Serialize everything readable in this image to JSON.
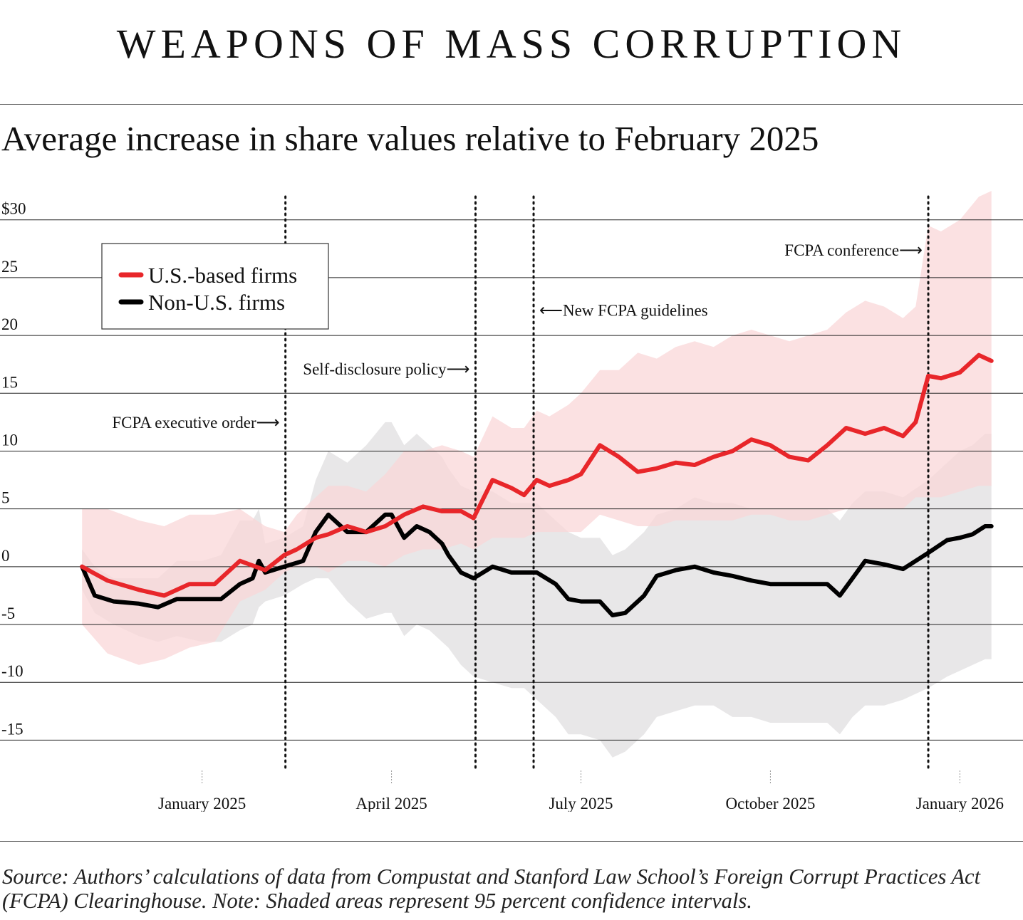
{
  "header": {
    "title": "WEAPONS OF MASS CORRUPTION",
    "subtitle": "Average increase in share values relative to February 2025"
  },
  "footer": {
    "source": "Source: Authors’ calculations of data from Compustat and Stanford Law School’s Foreign Corrupt Practices Act (FCPA) Clearinghouse. Note: Shaded areas represent 95 percent confidence intervals."
  },
  "colors": {
    "us_line": "#e8262a",
    "us_band": "#f9d7d8",
    "nonus_line": "#000000",
    "nonus_band": "#d9d7d9",
    "grid": "#222222"
  },
  "chart_data": {
    "type": "line",
    "title": "Average increase in share values relative to February 2025",
    "xlabel": "",
    "ylabel": "",
    "x_unit": "months since Jan 1, 2025",
    "xlim": [
      -3.2,
      13.0
    ],
    "ylim": [
      -17.5,
      33
    ],
    "y_ticks": [
      {
        "value": 30,
        "label": "$30"
      },
      {
        "value": 25,
        "label": "25"
      },
      {
        "value": 20,
        "label": "20"
      },
      {
        "value": 15,
        "label": "15"
      },
      {
        "value": 10,
        "label": "10"
      },
      {
        "value": 5,
        "label": "5"
      },
      {
        "value": 0,
        "label": "0"
      },
      {
        "value": -5,
        "label": "-5"
      },
      {
        "value": -10,
        "label": "-10"
      },
      {
        "value": -15,
        "label": "-15"
      }
    ],
    "x_ticks": [
      {
        "value": 0,
        "label": "January 2025"
      },
      {
        "value": 3,
        "label": "April 2025"
      },
      {
        "value": 6,
        "label": "July 2025"
      },
      {
        "value": 9,
        "label": "October 2025"
      },
      {
        "value": 12,
        "label": "January 2026"
      }
    ],
    "legend": {
      "position": "top-left",
      "entries": [
        {
          "name": "U.S.-based firms",
          "color": "#e8262a"
        },
        {
          "name": "Non-U.S. firms",
          "color": "#000000"
        }
      ]
    },
    "events": [
      {
        "x": 1.32,
        "label": "FCPA executive order⟶",
        "label_side": "left",
        "label_y": 12.5
      },
      {
        "x": 4.33,
        "label": "Self-disclosure policy⟶",
        "label_side": "left",
        "label_y": 17.1
      },
      {
        "x": 5.25,
        "label": "⟵New FCPA guidelines",
        "label_side": "right",
        "label_y": 22.2
      },
      {
        "x": 11.5,
        "label": "FCPA conference⟶",
        "label_side": "left",
        "label_y": 27.4
      }
    ],
    "series": [
      {
        "name": "U.S.-based firms",
        "color": "#e8262a",
        "x": [
          -1.9,
          -1.5,
          -1.0,
          -0.6,
          -0.2,
          0.2,
          0.6,
          1.0,
          1.3,
          1.5,
          1.8,
          2.0,
          2.3,
          2.6,
          2.9,
          3.2,
          3.5,
          3.8,
          4.1,
          4.3,
          4.6,
          4.9,
          5.1,
          5.3,
          5.5,
          5.8,
          6.0,
          6.3,
          6.6,
          6.9,
          7.2,
          7.5,
          7.8,
          8.1,
          8.4,
          8.7,
          9.0,
          9.3,
          9.6,
          9.9,
          10.2,
          10.5,
          10.8,
          11.1,
          11.3,
          11.5,
          11.7,
          12.0,
          12.3,
          12.5
        ],
        "values": [
          0.0,
          -1.2,
          -2.0,
          -2.5,
          -1.5,
          -1.5,
          0.5,
          -0.3,
          1.0,
          1.5,
          2.5,
          2.8,
          3.5,
          3.0,
          3.5,
          4.5,
          5.2,
          4.8,
          4.8,
          4.2,
          7.5,
          6.8,
          6.2,
          7.5,
          7.0,
          7.5,
          8.0,
          10.5,
          9.5,
          8.2,
          8.5,
          9.0,
          8.8,
          9.5,
          10.0,
          11.0,
          10.5,
          9.5,
          9.2,
          10.5,
          12.0,
          11.5,
          12.0,
          11.3,
          12.5,
          16.5,
          16.3,
          16.8,
          18.3,
          17.8
        ],
        "lower": [
          -5.0,
          -7.5,
          -8.5,
          -8.0,
          -7.0,
          -6.5,
          -3.0,
          -2.0,
          -0.5,
          0.0,
          0.0,
          -0.5,
          0.5,
          0.5,
          0.0,
          1.0,
          1.5,
          1.5,
          2.0,
          1.5,
          2.5,
          2.5,
          2.5,
          3.0,
          3.0,
          3.0,
          3.0,
          4.5,
          4.0,
          3.5,
          3.5,
          4.0,
          4.0,
          4.0,
          4.0,
          4.5,
          4.5,
          4.0,
          4.0,
          4.5,
          5.0,
          5.0,
          5.0,
          5.0,
          6.0,
          6.0,
          6.0,
          6.5,
          7.0,
          7.0
        ],
        "upper": [
          5.0,
          5.0,
          4.0,
          3.5,
          4.5,
          4.5,
          5.0,
          3.5,
          3.0,
          4.5,
          6.0,
          7.0,
          7.0,
          6.5,
          8.0,
          10.0,
          10.0,
          10.5,
          10.0,
          9.5,
          13.0,
          12.0,
          12.0,
          13.5,
          13.0,
          14.0,
          15.0,
          17.0,
          17.0,
          18.5,
          18.0,
          19.0,
          19.5,
          19.0,
          20.0,
          20.5,
          20.0,
          19.5,
          20.0,
          20.5,
          22.0,
          23.0,
          22.5,
          21.5,
          22.5,
          29.5,
          29.0,
          30.0,
          32.0,
          32.5
        ]
      },
      {
        "name": "Non-U.S. firms",
        "color": "#000000",
        "x": [
          -1.9,
          -1.7,
          -1.4,
          -1.0,
          -0.7,
          -0.4,
          0.0,
          0.3,
          0.6,
          0.8,
          0.9,
          1.0,
          1.3,
          1.6,
          1.8,
          2.0,
          2.3,
          2.6,
          2.9,
          3.0,
          3.2,
          3.4,
          3.6,
          3.8,
          3.9,
          4.1,
          4.3,
          4.6,
          4.9,
          5.1,
          5.3,
          5.6,
          5.8,
          6.0,
          6.3,
          6.5,
          6.7,
          6.9,
          7.0,
          7.2,
          7.5,
          7.8,
          8.1,
          8.4,
          8.7,
          9.0,
          9.3,
          9.6,
          9.9,
          10.1,
          10.3,
          10.5,
          10.8,
          11.1,
          11.5,
          11.8,
          12.0,
          12.2,
          12.4,
          12.5
        ],
        "values": [
          0.0,
          -2.5,
          -3.0,
          -3.2,
          -3.5,
          -2.8,
          -2.8,
          -2.8,
          -1.5,
          -1.0,
          0.5,
          -0.5,
          0.0,
          0.5,
          3.0,
          4.5,
          3.0,
          3.0,
          4.5,
          4.5,
          2.5,
          3.5,
          3.0,
          2.0,
          1.0,
          -0.5,
          -1.0,
          0.0,
          -0.5,
          -0.5,
          -0.5,
          -1.5,
          -2.8,
          -3.0,
          -3.0,
          -4.2,
          -4.0,
          -3.0,
          -2.5,
          -0.8,
          -0.3,
          0.0,
          -0.5,
          -0.8,
          -1.2,
          -1.5,
          -1.5,
          -1.5,
          -1.5,
          -2.5,
          -1.0,
          0.5,
          0.2,
          -0.2,
          1.2,
          2.3,
          2.5,
          2.8,
          3.5,
          3.5
        ],
        "lower": [
          -2.0,
          -4.0,
          -5.0,
          -6.0,
          -6.5,
          -6.0,
          -6.5,
          -6.5,
          -5.5,
          -5.0,
          -3.5,
          -3.0,
          -2.5,
          -1.5,
          -1.0,
          -1.0,
          -3.0,
          -4.5,
          -4.0,
          -4.0,
          -6.0,
          -5.0,
          -5.5,
          -6.5,
          -7.0,
          -8.5,
          -9.5,
          -10.0,
          -10.5,
          -10.5,
          -11.5,
          -13.0,
          -14.5,
          -14.5,
          -15.0,
          -16.5,
          -16.0,
          -15.0,
          -14.5,
          -13.0,
          -12.5,
          -12.0,
          -12.0,
          -13.0,
          -13.0,
          -13.5,
          -13.5,
          -13.5,
          -13.5,
          -14.5,
          -13.0,
          -12.0,
          -12.0,
          -11.5,
          -10.5,
          -9.5,
          -9.0,
          -8.5,
          -8.0,
          -8.0
        ],
        "upper": [
          1.5,
          0.0,
          -1.0,
          -1.0,
          -1.0,
          0.5,
          0.5,
          1.0,
          4.0,
          4.0,
          5.0,
          2.0,
          2.5,
          3.5,
          7.5,
          10.0,
          9.0,
          10.5,
          12.5,
          12.5,
          10.5,
          11.5,
          10.5,
          9.5,
          8.5,
          7.0,
          6.5,
          6.5,
          5.5,
          5.5,
          5.5,
          4.0,
          3.0,
          2.5,
          2.5,
          1.0,
          1.5,
          2.5,
          3.0,
          4.5,
          5.0,
          6.0,
          5.5,
          5.5,
          5.0,
          5.0,
          5.0,
          5.0,
          5.0,
          4.0,
          5.5,
          6.5,
          6.5,
          6.0,
          7.5,
          9.0,
          10.0,
          10.5,
          11.5,
          11.5
        ]
      }
    ]
  }
}
